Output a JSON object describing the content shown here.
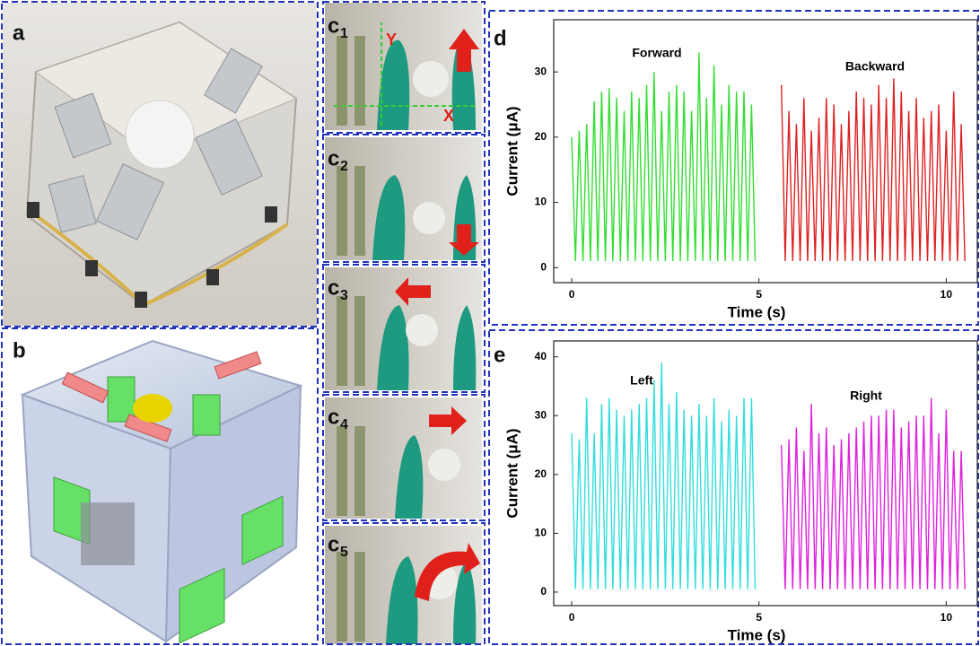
{
  "panels": {
    "a": "a",
    "b": "b",
    "c": [
      {
        "letter": "c",
        "sub": "1"
      },
      {
        "letter": "c",
        "sub": "2"
      },
      {
        "letter": "c",
        "sub": "3"
      },
      {
        "letter": "c",
        "sub": "4"
      },
      {
        "letter": "c",
        "sub": "5"
      }
    ],
    "axis_x": "X",
    "axis_y": "Y",
    "d": "d",
    "e": "e"
  },
  "chart_data": [
    {
      "type": "line",
      "xlabel": "Time (s)",
      "ylabel": "Current (μA)",
      "annotations": [
        "Forward",
        "Backward"
      ],
      "xlim": [
        -0.48,
        10.83
      ],
      "ylim": [
        -2.3,
        38
      ],
      "xticks": [
        0,
        5,
        10
      ],
      "yticks": [
        0,
        10,
        20,
        30
      ],
      "series": [
        {
          "name": "Forward",
          "color": "#33dd33",
          "x": [
            0,
            0.1,
            0.2,
            0.3,
            0.4,
            0.5,
            0.6,
            0.7,
            0.8,
            0.9,
            1.0,
            1.1,
            1.2,
            1.3,
            1.4,
            1.5,
            1.6,
            1.7,
            1.8,
            1.9,
            2.0,
            2.1,
            2.2,
            2.3,
            2.4,
            2.5,
            2.6,
            2.7,
            2.8,
            2.9,
            3.0,
            3.1,
            3.2,
            3.3,
            3.4,
            3.5,
            3.6,
            3.7,
            3.8,
            3.9,
            4.0,
            4.1,
            4.2,
            4.3,
            4.4,
            4.5,
            4.6,
            4.7,
            4.8,
            4.9
          ],
          "values": [
            20,
            1,
            21,
            1,
            22,
            1,
            25.5,
            1,
            27,
            1,
            27.5,
            1,
            26,
            1,
            24,
            1,
            27,
            1,
            26,
            1,
            28,
            1,
            30,
            1,
            24,
            1,
            27,
            1,
            28,
            1,
            27,
            1,
            24,
            1,
            33,
            1,
            26,
            1,
            31,
            1,
            25,
            1,
            28,
            1,
            27,
            1,
            27,
            1,
            25,
            1
          ]
        },
        {
          "name": "Backward",
          "color": "#dd2222",
          "x": [
            5.6,
            5.7,
            5.8,
            5.9,
            6.0,
            6.1,
            6.2,
            6.3,
            6.4,
            6.5,
            6.6,
            6.7,
            6.8,
            6.9,
            7.0,
            7.1,
            7.2,
            7.3,
            7.4,
            7.5,
            7.6,
            7.7,
            7.8,
            7.9,
            8.0,
            8.1,
            8.2,
            8.3,
            8.4,
            8.5,
            8.6,
            8.7,
            8.8,
            8.9,
            9.0,
            9.1,
            9.2,
            9.3,
            9.4,
            9.5,
            9.6,
            9.7,
            9.8,
            9.9,
            10.0,
            10.1,
            10.2,
            10.3,
            10.4,
            10.5
          ],
          "values": [
            28,
            1,
            24,
            1,
            22,
            1,
            26,
            1,
            21,
            1,
            23,
            1,
            26,
            1,
            25,
            1,
            22,
            1,
            24,
            1,
            27,
            1,
            26,
            1,
            25,
            1,
            28,
            1,
            26,
            1,
            29,
            1,
            27,
            1,
            24,
            1,
            26,
            1,
            23,
            1,
            24,
            1,
            25,
            1,
            21,
            1,
            27,
            1,
            22,
            1
          ]
        }
      ]
    },
    {
      "type": "line",
      "xlabel": "Time (s)",
      "ylabel": "Current (μA)",
      "annotations": [
        "Left",
        "Right"
      ],
      "xlim": [
        -0.48,
        10.83
      ],
      "ylim": [
        -2.3,
        42.7
      ],
      "xticks": [
        0,
        5,
        10
      ],
      "yticks": [
        0,
        10,
        20,
        30,
        40
      ],
      "series": [
        {
          "name": "Left",
          "color": "#33dddd",
          "x": [
            0,
            0.1,
            0.2,
            0.3,
            0.4,
            0.5,
            0.6,
            0.7,
            0.8,
            0.9,
            1.0,
            1.1,
            1.2,
            1.3,
            1.4,
            1.5,
            1.6,
            1.7,
            1.8,
            1.9,
            2.0,
            2.1,
            2.2,
            2.3,
            2.4,
            2.5,
            2.6,
            2.7,
            2.8,
            2.9,
            3.0,
            3.1,
            3.2,
            3.3,
            3.4,
            3.5,
            3.6,
            3.7,
            3.8,
            3.9,
            4.0,
            4.1,
            4.2,
            4.3,
            4.4,
            4.5,
            4.6,
            4.7,
            4.8,
            4.9
          ],
          "values": [
            27,
            0.5,
            26,
            0.5,
            33,
            0.5,
            27,
            0.5,
            32,
            0.5,
            33,
            0.5,
            31,
            0.5,
            30,
            0.5,
            31,
            0.5,
            32,
            0.5,
            33,
            0.5,
            36,
            0.5,
            39,
            0.5,
            32,
            0.5,
            34,
            0.5,
            31,
            0.5,
            30,
            0.5,
            32,
            0.5,
            30,
            0.5,
            33,
            0.5,
            29,
            0.5,
            31,
            0.5,
            30,
            0.5,
            33,
            0.5,
            33,
            0.5
          ]
        },
        {
          "name": "Right",
          "color": "#dd22dd",
          "x": [
            5.6,
            5.7,
            5.8,
            5.9,
            6.0,
            6.1,
            6.2,
            6.3,
            6.4,
            6.5,
            6.6,
            6.7,
            6.8,
            6.9,
            7.0,
            7.1,
            7.2,
            7.3,
            7.4,
            7.5,
            7.6,
            7.7,
            7.8,
            7.9,
            8.0,
            8.1,
            8.2,
            8.3,
            8.4,
            8.5,
            8.6,
            8.7,
            8.8,
            8.9,
            9.0,
            9.1,
            9.2,
            9.3,
            9.4,
            9.5,
            9.6,
            9.7,
            9.8,
            9.9,
            10.0,
            10.1,
            10.2,
            10.3,
            10.4,
            10.5
          ],
          "values": [
            25,
            0.5,
            26,
            0.5,
            28,
            0.5,
            24,
            0.5,
            32,
            0.5,
            27,
            0.5,
            28,
            0.5,
            25,
            0.5,
            26,
            0.5,
            27,
            0.5,
            28,
            0.5,
            29,
            0.5,
            30,
            0.5,
            30,
            0.5,
            31,
            0.5,
            31,
            0.5,
            28,
            0.5,
            29,
            0.5,
            30,
            0.5,
            30,
            0.5,
            33,
            0.5,
            27,
            0.5,
            31,
            0.5,
            24,
            0.5,
            24,
            0.5
          ]
        }
      ]
    }
  ]
}
